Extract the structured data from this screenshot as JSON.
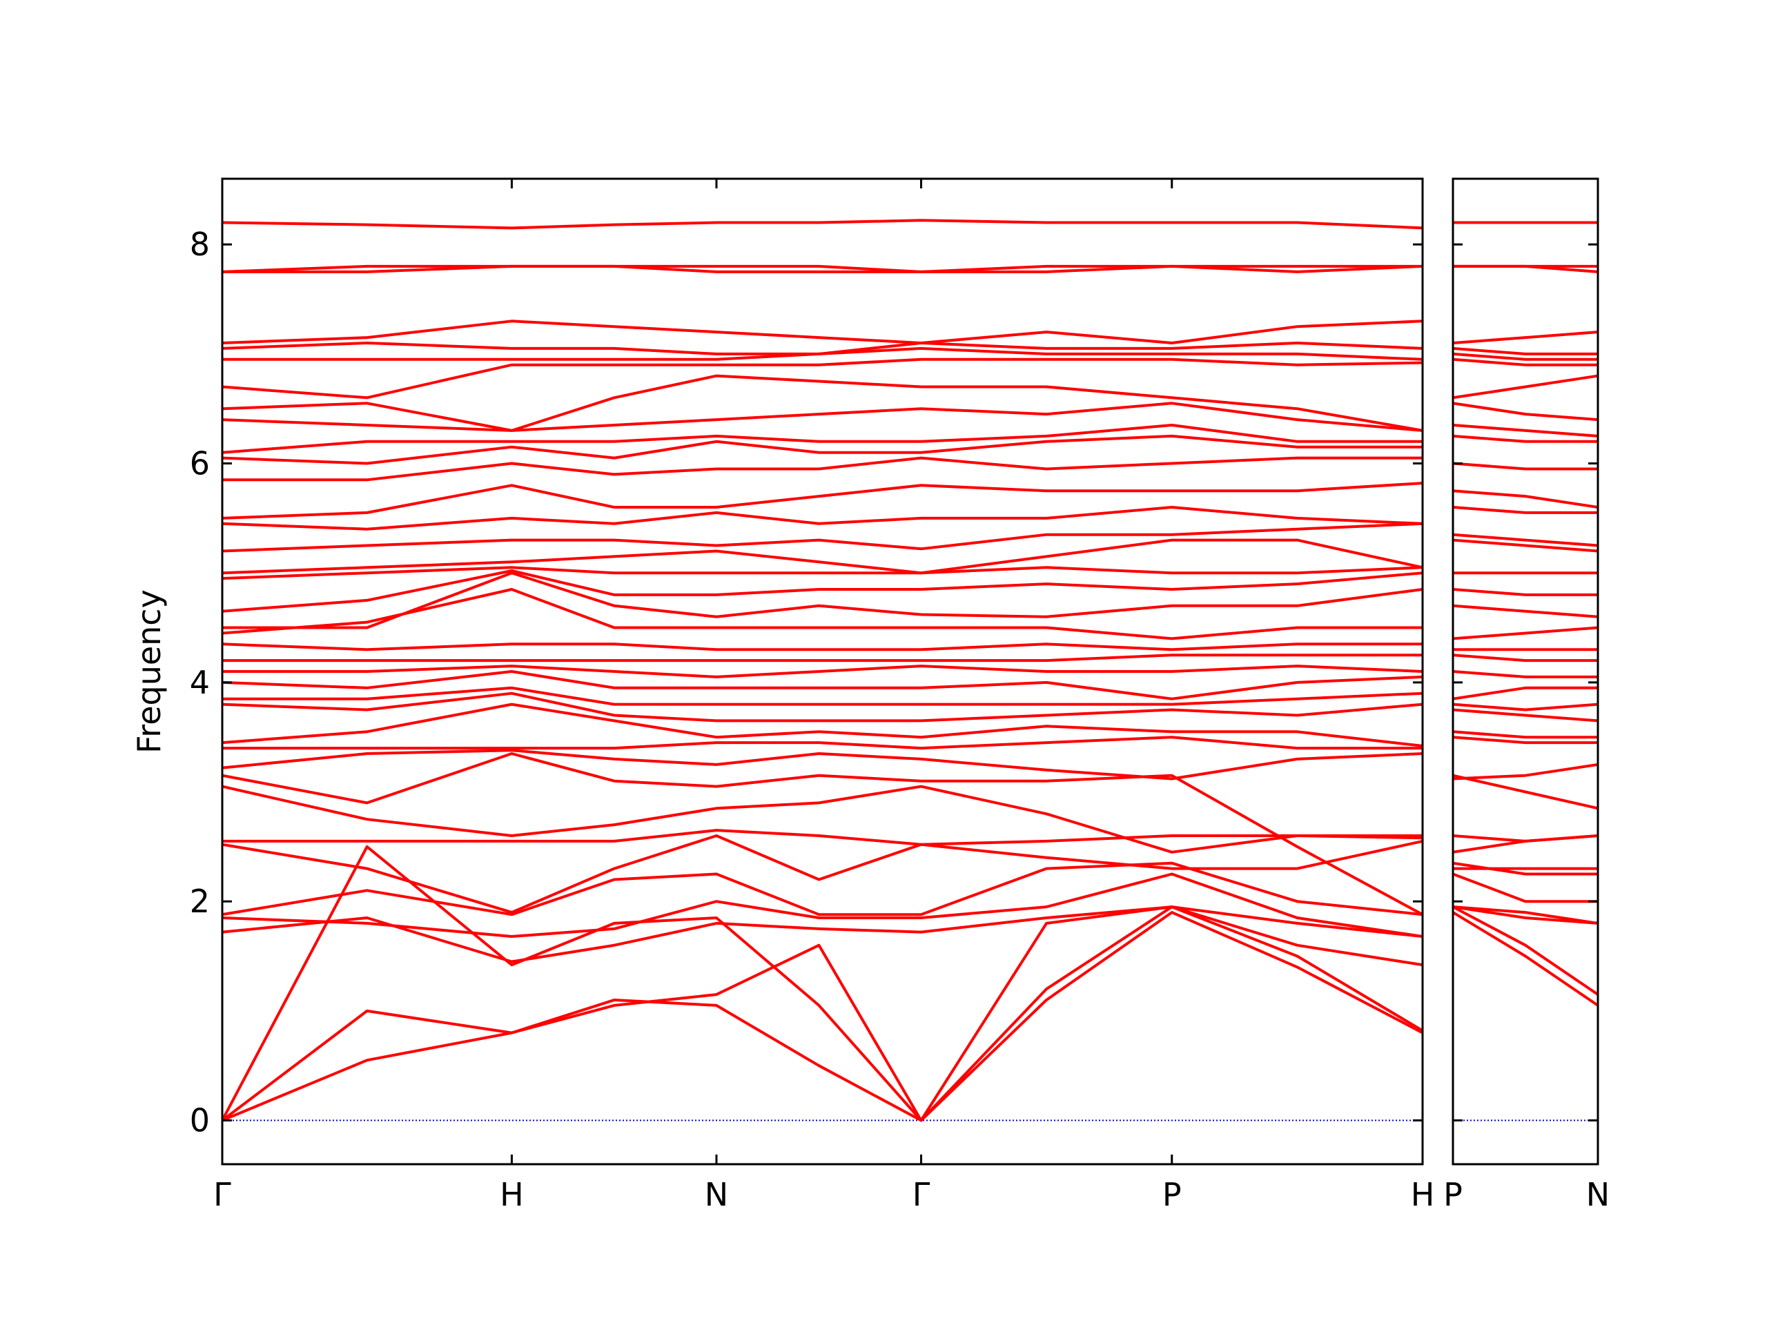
{
  "chart_data": [
    {
      "type": "line",
      "ylabel": "Frequency",
      "color": "#ff0000",
      "hline": 0,
      "hline_color": "#0000cc",
      "x": [
        0,
        0.5,
        1,
        1.354,
        1.707,
        2.061,
        2.414,
        2.847,
        3.28,
        3.713,
        4.146
      ],
      "xlim": [
        0,
        4.146
      ],
      "xticks": [
        {
          "value": 0,
          "label": "Γ"
        },
        {
          "value": 1,
          "label": "H"
        },
        {
          "value": 1.707,
          "label": "N"
        },
        {
          "value": 2.414,
          "label": "Γ"
        },
        {
          "value": 3.28,
          "label": "P"
        },
        {
          "value": 4.146,
          "label": "H"
        }
      ],
      "ylim": [
        -0.4,
        8.6
      ],
      "yticks": [
        0,
        2,
        4,
        6,
        8
      ],
      "series": [
        {
          "values": [
            0,
            0.55,
            0.8,
            1.1,
            1.05,
            0.5,
            0,
            1.1,
            1.9,
            1.4,
            0.8
          ]
        },
        {
          "values": [
            0,
            1.0,
            0.8,
            1.05,
            1.15,
            1.6,
            0,
            1.2,
            1.95,
            1.5,
            0.82
          ]
        },
        {
          "values": [
            0,
            2.5,
            1.42,
            1.8,
            1.85,
            1.05,
            0,
            1.8,
            1.95,
            1.6,
            1.42
          ]
        },
        {
          "values": [
            1.72,
            1.85,
            1.45,
            1.6,
            1.8,
            1.75,
            1.72,
            1.85,
            1.95,
            1.8,
            1.68
          ]
        },
        {
          "values": [
            1.85,
            1.8,
            1.68,
            1.75,
            2.0,
            1.85,
            1.85,
            1.95,
            2.25,
            1.85,
            1.68
          ]
        },
        {
          "values": [
            1.88,
            2.1,
            1.88,
            2.2,
            2.25,
            1.88,
            1.88,
            2.3,
            2.35,
            2.0,
            1.88
          ]
        },
        {
          "values": [
            2.52,
            2.3,
            1.9,
            2.3,
            2.6,
            2.2,
            2.52,
            2.4,
            2.3,
            2.3,
            2.55
          ]
        },
        {
          "values": [
            2.55,
            2.55,
            2.55,
            2.55,
            2.65,
            2.6,
            2.52,
            2.55,
            2.6,
            2.6,
            2.58
          ]
        },
        {
          "values": [
            3.05,
            2.75,
            2.6,
            2.7,
            2.85,
            2.9,
            3.05,
            2.8,
            2.45,
            2.6,
            2.6
          ]
        },
        {
          "values": [
            3.15,
            2.9,
            3.35,
            3.1,
            3.05,
            3.15,
            3.1,
            3.1,
            3.15,
            2.5,
            1.88
          ]
        },
        {
          "values": [
            3.22,
            3.35,
            3.38,
            3.3,
            3.25,
            3.35,
            3.3,
            3.2,
            3.12,
            3.3,
            3.35
          ]
        },
        {
          "values": [
            3.4,
            3.4,
            3.4,
            3.4,
            3.45,
            3.45,
            3.4,
            3.45,
            3.5,
            3.4,
            3.4
          ]
        },
        {
          "values": [
            3.45,
            3.55,
            3.8,
            3.65,
            3.5,
            3.55,
            3.5,
            3.6,
            3.55,
            3.55,
            3.42
          ]
        },
        {
          "values": [
            3.8,
            3.75,
            3.9,
            3.7,
            3.65,
            3.65,
            3.65,
            3.7,
            3.75,
            3.7,
            3.8
          ]
        },
        {
          "values": [
            3.85,
            3.85,
            3.95,
            3.8,
            3.8,
            3.8,
            3.8,
            3.8,
            3.8,
            3.85,
            3.9
          ]
        },
        {
          "values": [
            4.0,
            3.95,
            4.1,
            3.95,
            3.95,
            3.95,
            3.95,
            4.0,
            3.85,
            4.0,
            4.05
          ]
        },
        {
          "values": [
            4.1,
            4.1,
            4.15,
            4.1,
            4.05,
            4.1,
            4.15,
            4.1,
            4.1,
            4.15,
            4.1
          ]
        },
        {
          "values": [
            4.2,
            4.2,
            4.2,
            4.2,
            4.2,
            4.2,
            4.2,
            4.2,
            4.25,
            4.25,
            4.25
          ]
        },
        {
          "values": [
            4.35,
            4.3,
            4.35,
            4.35,
            4.3,
            4.3,
            4.3,
            4.35,
            4.3,
            4.35,
            4.35
          ]
        },
        {
          "values": [
            4.45,
            4.55,
            4.85,
            4.5,
            4.5,
            4.5,
            4.5,
            4.5,
            4.4,
            4.5,
            4.5
          ]
        },
        {
          "values": [
            4.5,
            4.5,
            5.0,
            4.7,
            4.6,
            4.7,
            4.62,
            4.6,
            4.7,
            4.7,
            4.85
          ]
        },
        {
          "values": [
            4.65,
            4.75,
            5.02,
            4.8,
            4.8,
            4.85,
            4.85,
            4.9,
            4.85,
            4.9,
            5.0
          ]
        },
        {
          "values": [
            4.95,
            5.0,
            5.05,
            5.0,
            5.0,
            5.0,
            5.0,
            5.05,
            5.0,
            5.0,
            5.05
          ]
        },
        {
          "values": [
            5.0,
            5.05,
            5.1,
            5.15,
            5.2,
            5.1,
            5.0,
            5.15,
            5.3,
            5.3,
            5.05
          ]
        },
        {
          "values": [
            5.2,
            5.25,
            5.3,
            5.3,
            5.25,
            5.3,
            5.22,
            5.35,
            5.35,
            5.4,
            5.45
          ]
        },
        {
          "values": [
            5.45,
            5.4,
            5.5,
            5.45,
            5.55,
            5.45,
            5.5,
            5.5,
            5.6,
            5.5,
            5.45
          ]
        },
        {
          "values": [
            5.5,
            5.55,
            5.8,
            5.6,
            5.6,
            5.7,
            5.8,
            5.75,
            5.75,
            5.75,
            5.82
          ]
        },
        {
          "values": [
            5.85,
            5.85,
            6.0,
            5.9,
            5.95,
            5.95,
            6.05,
            5.95,
            6.0,
            6.05,
            6.05
          ]
        },
        {
          "values": [
            6.05,
            6.0,
            6.15,
            6.05,
            6.2,
            6.1,
            6.1,
            6.2,
            6.25,
            6.15,
            6.15
          ]
        },
        {
          "values": [
            6.1,
            6.2,
            6.2,
            6.2,
            6.25,
            6.2,
            6.2,
            6.25,
            6.35,
            6.2,
            6.2
          ]
        },
        {
          "values": [
            6.4,
            6.35,
            6.3,
            6.35,
            6.4,
            6.45,
            6.5,
            6.45,
            6.55,
            6.4,
            6.3
          ]
        },
        {
          "values": [
            6.5,
            6.55,
            6.3,
            6.6,
            6.8,
            6.75,
            6.7,
            6.7,
            6.6,
            6.5,
            6.3
          ]
        },
        {
          "values": [
            6.7,
            6.6,
            6.9,
            6.9,
            6.9,
            6.9,
            6.95,
            6.95,
            6.95,
            6.9,
            6.92
          ]
        },
        {
          "values": [
            6.95,
            6.95,
            6.95,
            6.95,
            6.95,
            7.0,
            7.05,
            7.0,
            7.0,
            7.0,
            6.95
          ]
        },
        {
          "values": [
            7.05,
            7.1,
            7.05,
            7.05,
            7.0,
            7.0,
            7.1,
            7.05,
            7.05,
            7.1,
            7.05
          ]
        },
        {
          "values": [
            7.1,
            7.15,
            7.3,
            7.25,
            7.2,
            7.15,
            7.1,
            7.2,
            7.1,
            7.25,
            7.3
          ]
        },
        {
          "values": [
            7.75,
            7.8,
            7.8,
            7.8,
            7.75,
            7.75,
            7.75,
            7.8,
            7.8,
            7.75,
            7.8
          ]
        },
        {
          "values": [
            7.75,
            7.75,
            7.8,
            7.8,
            7.8,
            7.8,
            7.75,
            7.75,
            7.8,
            7.8,
            7.8
          ]
        },
        {
          "values": [
            8.2,
            8.18,
            8.15,
            8.18,
            8.2,
            8.2,
            8.22,
            8.2,
            8.2,
            8.2,
            8.15
          ]
        }
      ]
    },
    {
      "type": "line",
      "color": "#ff0000",
      "hline": 0,
      "hline_color": "#0000cc",
      "x": [
        0,
        0.25,
        0.5
      ],
      "xlim": [
        0,
        0.5
      ],
      "xticks": [
        {
          "value": 0,
          "label": "P"
        },
        {
          "value": 0.5,
          "label": "N"
        }
      ],
      "ylim": [
        -0.4,
        8.6
      ],
      "series": [
        {
          "values": [
            1.9,
            1.5,
            1.05
          ]
        },
        {
          "values": [
            1.95,
            1.6,
            1.15
          ]
        },
        {
          "values": [
            1.95,
            1.85,
            1.8
          ]
        },
        {
          "values": [
            1.95,
            1.9,
            1.8
          ]
        },
        {
          "values": [
            2.25,
            2.0,
            2.0
          ]
        },
        {
          "values": [
            2.35,
            2.25,
            2.25
          ]
        },
        {
          "values": [
            2.3,
            2.3,
            2.3
          ]
        },
        {
          "values": [
            2.6,
            2.55,
            2.6
          ]
        },
        {
          "values": [
            2.45,
            2.55,
            2.6
          ]
        },
        {
          "values": [
            3.15,
            3.0,
            2.85
          ]
        },
        {
          "values": [
            3.12,
            3.15,
            3.25
          ]
        },
        {
          "values": [
            3.5,
            3.45,
            3.45
          ]
        },
        {
          "values": [
            3.55,
            3.5,
            3.5
          ]
        },
        {
          "values": [
            3.75,
            3.7,
            3.65
          ]
        },
        {
          "values": [
            3.8,
            3.75,
            3.8
          ]
        },
        {
          "values": [
            3.85,
            3.95,
            3.95
          ]
        },
        {
          "values": [
            4.1,
            4.05,
            4.05
          ]
        },
        {
          "values": [
            4.25,
            4.2,
            4.2
          ]
        },
        {
          "values": [
            4.3,
            4.3,
            4.3
          ]
        },
        {
          "values": [
            4.4,
            4.45,
            4.5
          ]
        },
        {
          "values": [
            4.7,
            4.65,
            4.6
          ]
        },
        {
          "values": [
            4.85,
            4.8,
            4.8
          ]
        },
        {
          "values": [
            5.0,
            5.0,
            5.0
          ]
        },
        {
          "values": [
            5.3,
            5.25,
            5.2
          ]
        },
        {
          "values": [
            5.35,
            5.3,
            5.25
          ]
        },
        {
          "values": [
            5.6,
            5.55,
            5.55
          ]
        },
        {
          "values": [
            5.75,
            5.7,
            5.6
          ]
        },
        {
          "values": [
            6.0,
            5.95,
            5.95
          ]
        },
        {
          "values": [
            6.25,
            6.2,
            6.2
          ]
        },
        {
          "values": [
            6.35,
            6.3,
            6.25
          ]
        },
        {
          "values": [
            6.55,
            6.45,
            6.4
          ]
        },
        {
          "values": [
            6.6,
            6.7,
            6.8
          ]
        },
        {
          "values": [
            6.95,
            6.9,
            6.9
          ]
        },
        {
          "values": [
            7.0,
            6.95,
            6.95
          ]
        },
        {
          "values": [
            7.05,
            7.0,
            7.0
          ]
        },
        {
          "values": [
            7.1,
            7.15,
            7.2
          ]
        },
        {
          "values": [
            7.8,
            7.8,
            7.75
          ]
        },
        {
          "values": [
            7.8,
            7.8,
            7.8
          ]
        },
        {
          "values": [
            8.2,
            8.2,
            8.2
          ]
        }
      ]
    }
  ]
}
